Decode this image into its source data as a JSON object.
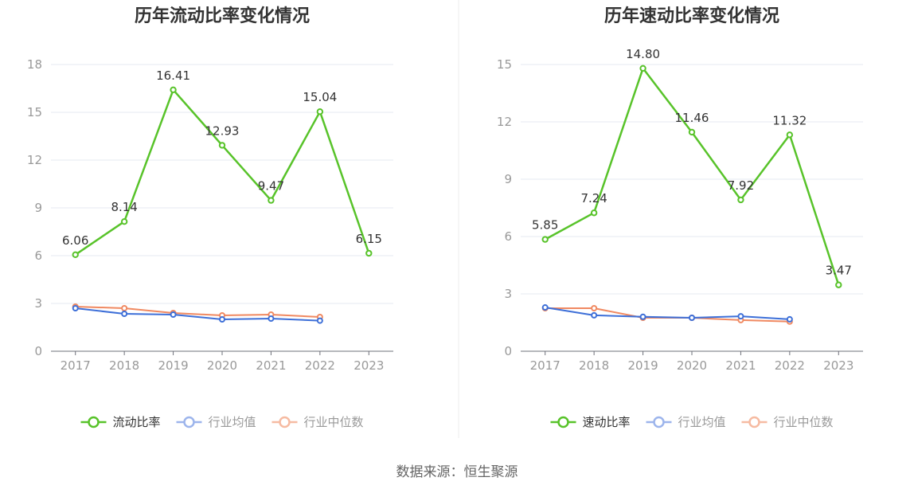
{
  "source": {
    "text": "数据来源：恒生聚源"
  },
  "theme": {
    "title_color": "#333333",
    "axis_label_color": "#999999",
    "grid_color": "#e6e9f0",
    "axis_color": "#6e7079",
    "data_label_color": "#333333",
    "divider_color": "#eeeeee"
  },
  "chart_data": [
    {
      "type": "line",
      "title": "历年流动比率变化情况",
      "xlabel": "",
      "ylabel": "",
      "categories": [
        "2017",
        "2018",
        "2019",
        "2020",
        "2021",
        "2022",
        "2023"
      ],
      "ylim": [
        0,
        18
      ],
      "yticks": [
        0,
        3,
        6,
        9,
        12,
        15,
        18
      ],
      "grid": true,
      "legend": "bottom-center",
      "series": [
        {
          "name": "流动比率",
          "color": "#58c32a",
          "legend_color": "#58c32a",
          "legend_text_color": "#333333",
          "values": [
            6.06,
            8.14,
            16.41,
            12.93,
            9.47,
            15.04,
            6.15
          ],
          "labels": [
            "6.06",
            "8.14",
            "16.41",
            "12.93",
            "9.47",
            "15.04",
            "6.15"
          ]
        },
        {
          "name": "行业均值",
          "color": "#3d6fd8",
          "legend_color": "#9db5ec",
          "legend_text_color": "#999999",
          "values": [
            2.7,
            2.35,
            2.3,
            2.0,
            2.05,
            1.92,
            null
          ]
        },
        {
          "name": "行业中位数",
          "color": "#f08961",
          "legend_color": "#f6bba2",
          "legend_text_color": "#999999",
          "values": [
            2.8,
            2.7,
            2.4,
            2.25,
            2.3,
            2.15,
            null
          ]
        }
      ]
    },
    {
      "type": "line",
      "title": "历年速动比率变化情况",
      "xlabel": "",
      "ylabel": "",
      "categories": [
        "2017",
        "2018",
        "2019",
        "2020",
        "2021",
        "2022",
        "2023"
      ],
      "ylim": [
        0,
        15
      ],
      "yticks": [
        0,
        3,
        6,
        9,
        12,
        15
      ],
      "grid": true,
      "legend": "bottom-center",
      "series": [
        {
          "name": "速动比率",
          "color": "#58c32a",
          "legend_color": "#58c32a",
          "legend_text_color": "#333333",
          "values": [
            5.85,
            7.24,
            14.8,
            11.46,
            7.92,
            11.32,
            3.47
          ],
          "labels": [
            "5.85",
            "7.24",
            "14.80",
            "11.46",
            "7.92",
            "11.32",
            "3.47"
          ]
        },
        {
          "name": "行业均值",
          "color": "#3d6fd8",
          "legend_color": "#9db5ec",
          "legend_text_color": "#999999",
          "values": [
            2.29,
            1.88,
            1.8,
            1.75,
            1.83,
            1.67,
            null
          ]
        },
        {
          "name": "行业中位数",
          "color": "#f08961",
          "legend_color": "#f6bba2",
          "legend_text_color": "#999999",
          "values": [
            2.25,
            2.25,
            1.75,
            1.75,
            1.63,
            1.55,
            null
          ]
        }
      ]
    }
  ]
}
